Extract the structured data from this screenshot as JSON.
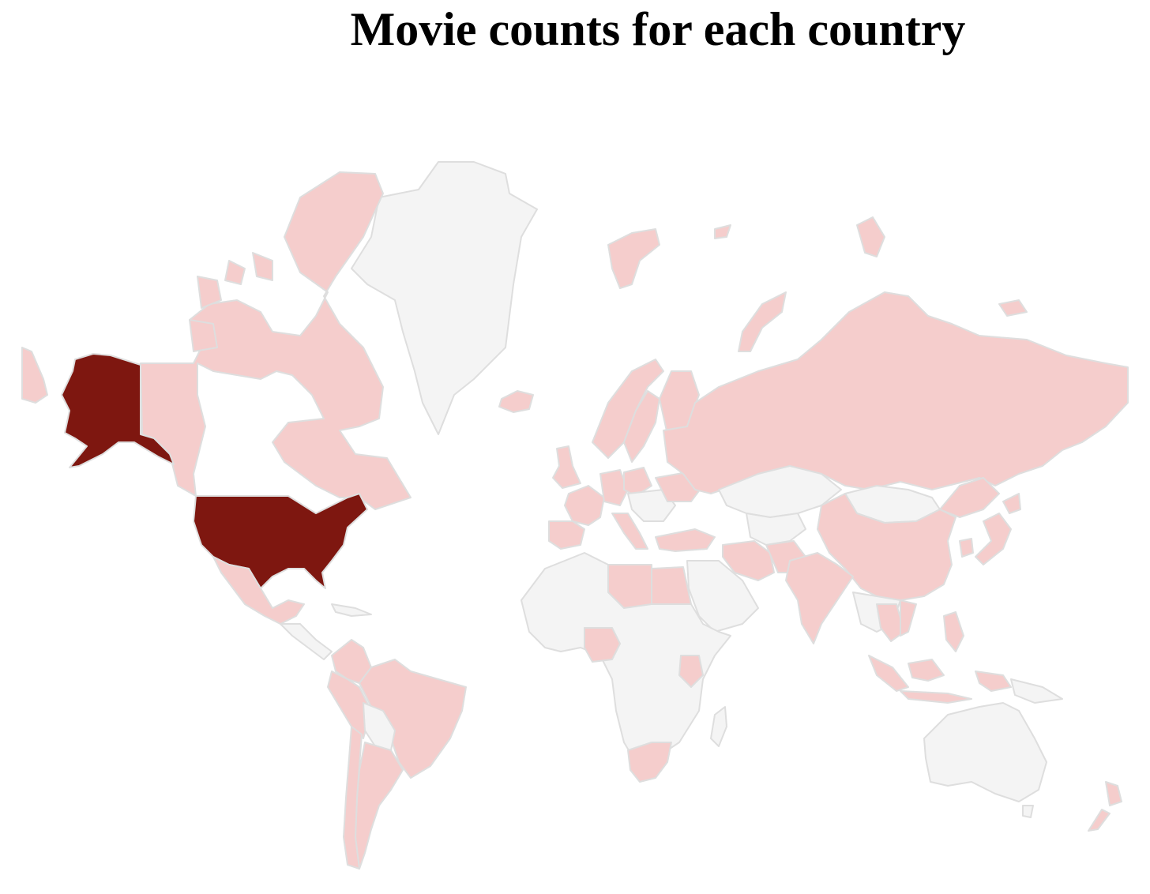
{
  "title": "Movie counts for each country",
  "colors": {
    "no_data": "#f4f4f4",
    "low": "#f5cdcc",
    "high": "#7e1710",
    "border": "#dedede"
  },
  "countries": [
    {
      "name": "United States",
      "level": "high"
    },
    {
      "name": "Alaska (United States)",
      "level": "high"
    },
    {
      "name": "Canada",
      "level": "low"
    },
    {
      "name": "Mexico",
      "level": "low"
    },
    {
      "name": "Greenland",
      "level": "none"
    },
    {
      "name": "Colombia",
      "level": "low"
    },
    {
      "name": "Peru",
      "level": "low"
    },
    {
      "name": "Brazil",
      "level": "low"
    },
    {
      "name": "Argentina",
      "level": "low"
    },
    {
      "name": "Chile",
      "level": "low"
    },
    {
      "name": "Iceland",
      "level": "low"
    },
    {
      "name": "United Kingdom",
      "level": "low"
    },
    {
      "name": "Norway",
      "level": "low"
    },
    {
      "name": "Sweden",
      "level": "low"
    },
    {
      "name": "Finland",
      "level": "low"
    },
    {
      "name": "France",
      "level": "low"
    },
    {
      "name": "Spain",
      "level": "low"
    },
    {
      "name": "Germany",
      "level": "low"
    },
    {
      "name": "Italy",
      "level": "low"
    },
    {
      "name": "Poland",
      "level": "low"
    },
    {
      "name": "Ukraine",
      "level": "low"
    },
    {
      "name": "Turkey",
      "level": "low"
    },
    {
      "name": "Russia",
      "level": "low"
    },
    {
      "name": "Kazakhstan",
      "level": "none"
    },
    {
      "name": "Mongolia",
      "level": "none"
    },
    {
      "name": "China",
      "level": "low"
    },
    {
      "name": "Japan",
      "level": "low"
    },
    {
      "name": "South Korea",
      "level": "low"
    },
    {
      "name": "India",
      "level": "low"
    },
    {
      "name": "Iran",
      "level": "low"
    },
    {
      "name": "Egypt",
      "level": "low"
    },
    {
      "name": "Libya",
      "level": "low"
    },
    {
      "name": "Nigeria",
      "level": "low"
    },
    {
      "name": "Kenya",
      "level": "low"
    },
    {
      "name": "South Africa",
      "level": "low"
    },
    {
      "name": "Thailand",
      "level": "low"
    },
    {
      "name": "Indonesia",
      "level": "low"
    },
    {
      "name": "Philippines",
      "level": "low"
    },
    {
      "name": "Australia",
      "level": "none"
    },
    {
      "name": "New Zealand",
      "level": "low"
    },
    {
      "name": "Africa (other)",
      "level": "none"
    },
    {
      "name": "Arabian Peninsula",
      "level": "none"
    },
    {
      "name": "Central Asia",
      "level": "none"
    },
    {
      "name": "Madagascar",
      "level": "none"
    },
    {
      "name": "Bolivia / Paraguay",
      "level": "none"
    }
  ]
}
